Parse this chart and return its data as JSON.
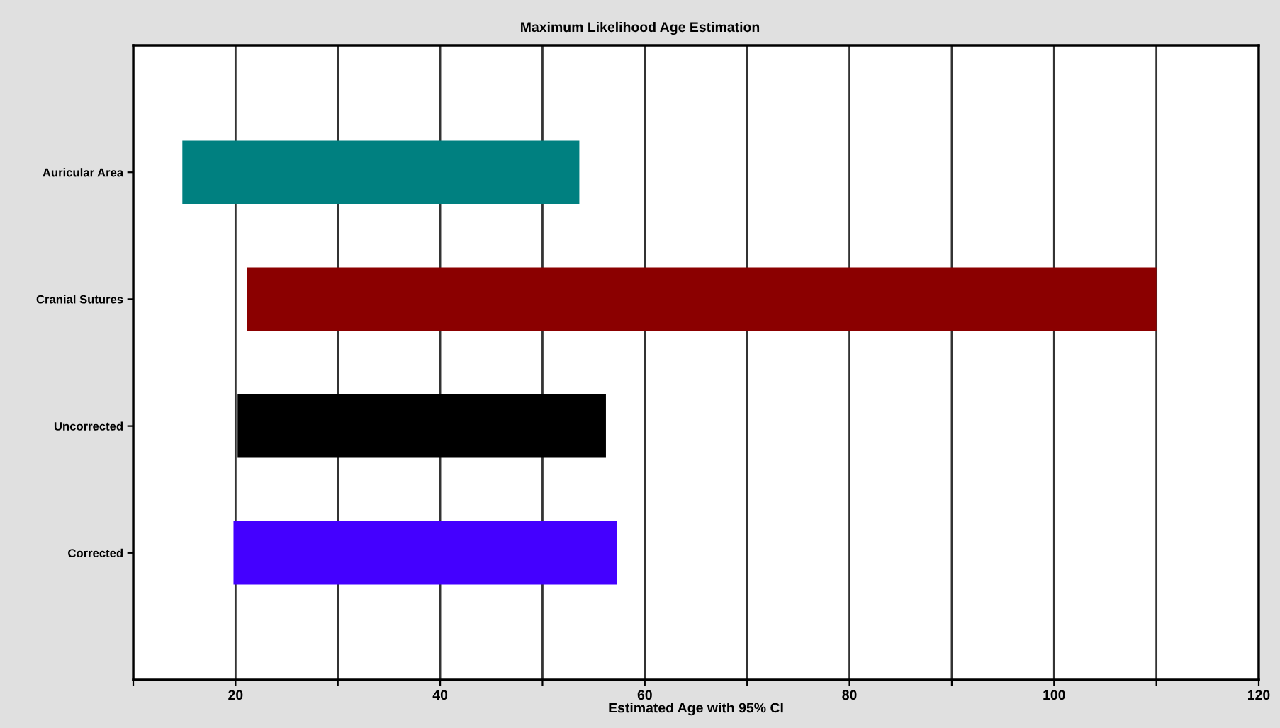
{
  "chart_data": {
    "type": "bar",
    "orientation": "horizontal",
    "title": "Maximum Likelihood Age Estimation",
    "xlabel": "Estimated Age with 95% CI",
    "categories": [
      "Auricular Area",
      "Cranial Sutures",
      "Uncorrected",
      "Corrected"
    ],
    "base": [
      14.8,
      21.1,
      20.2,
      19.8
    ],
    "values": [
      38.8,
      88.9,
      36.0,
      37.5
    ],
    "colors": [
      "#008080",
      "#8b0000",
      "#000000",
      "#4400ff"
    ],
    "xlim": [
      10,
      120
    ],
    "xticks": [
      {
        "value": 10,
        "label": null
      },
      20,
      {
        "value": 30,
        "label": null
      },
      40,
      {
        "value": 50,
        "label": null
      },
      60,
      {
        "value": 70,
        "label": null
      },
      80,
      {
        "value": 90,
        "label": null
      },
      100,
      {
        "value": 110,
        "label": null
      },
      120
    ],
    "grid": "x",
    "legend": false
  }
}
